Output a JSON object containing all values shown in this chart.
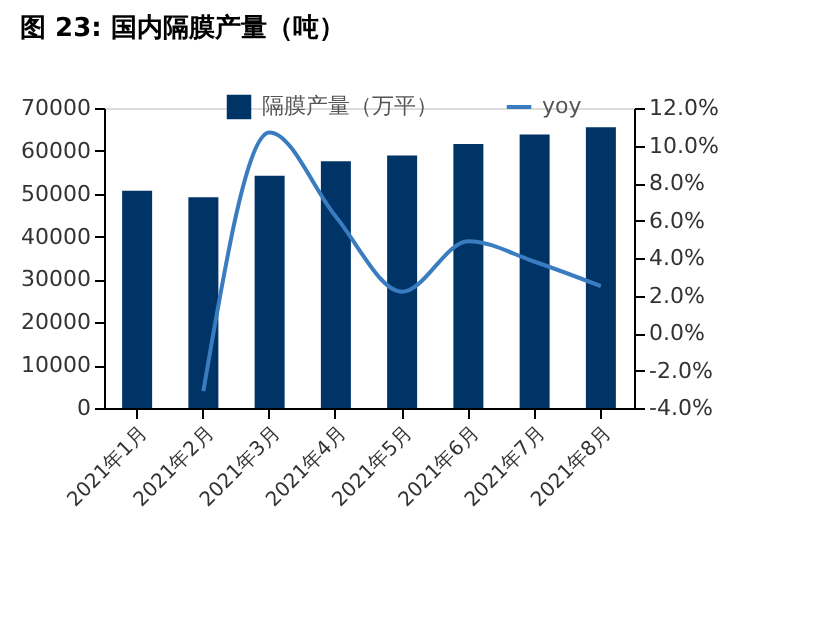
{
  "chart_data": {
    "type": "bar",
    "title": "图 23: 国内隔膜产量（吨）",
    "categories": [
      "2021年1月",
      "2021年2月",
      "2021年3月",
      "2021年4月",
      "2021年5月",
      "2021年6月",
      "2021年7月",
      "2021年8月"
    ],
    "series": [
      {
        "name": "隔膜产量（万平）",
        "color": "#003366",
        "values": [
          50700,
          49200,
          54200,
          57600,
          58900,
          61600,
          63800,
          65500
        ]
      },
      {
        "name": "yoy",
        "color": "#3a7cc0",
        "type": "line",
        "axis": "y2",
        "values": [
          null,
          -3.1,
          10.7,
          6.2,
          2.2,
          4.9,
          3.8,
          2.5
        ]
      }
    ],
    "ylim": [
      0,
      70000
    ],
    "yticks": [
      0,
      10000,
      20000,
      30000,
      40000,
      50000,
      60000,
      70000
    ],
    "y2lim": [
      -4,
      12
    ],
    "y2ticks": [
      {
        "value": -4,
        "label": "-4.0%"
      },
      {
        "value": -2,
        "label": "-2.0%"
      },
      {
        "value": 0,
        "label": "0.0%"
      },
      {
        "value": 2,
        "label": "2.0%"
      },
      {
        "value": 4,
        "label": "4.0%"
      },
      {
        "value": 6,
        "label": "6.0%"
      },
      {
        "value": 8,
        "label": "8.0%"
      },
      {
        "value": 10,
        "label": "10.0%"
      },
      {
        "value": 12,
        "label": "12.0%"
      }
    ],
    "legend": "top",
    "grid": false,
    "marker": "none",
    "line_style": "solid"
  }
}
